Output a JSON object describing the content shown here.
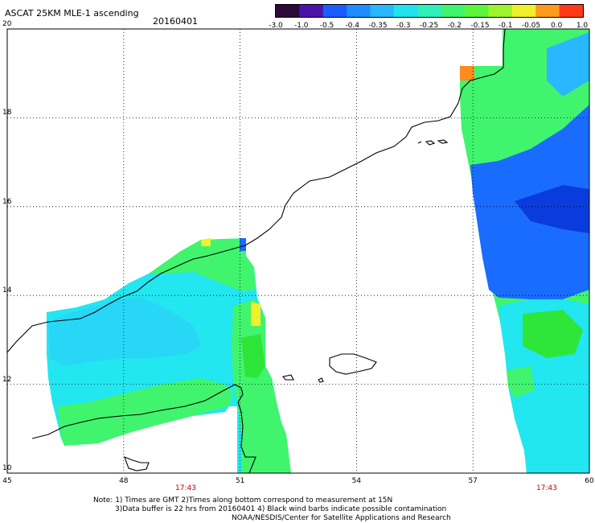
{
  "header": {
    "title": "ASCAT 25KM MLE-1 ascending",
    "date": "20160401"
  },
  "colorbar": {
    "labels": [
      "-3.0",
      "-1.0",
      "-0.5",
      "-0.4",
      "-0.35",
      "-0.3",
      "-0.25",
      "-0.2",
      "-0.15",
      "-0.1",
      "-0.05",
      "0.0",
      "1.0"
    ],
    "colors": [
      "#2b0a3a",
      "#4b14a8",
      "#1a5cff",
      "#1f8cff",
      "#29b7ff",
      "#22e2f0",
      "#2ff0b8",
      "#41f46e",
      "#5cf53a",
      "#9cf52a",
      "#f0f02a",
      "#ff9a1e",
      "#ff3a1a"
    ]
  },
  "map": {
    "lon_labels": [
      "45",
      "48",
      "51",
      "54",
      "57",
      "60"
    ],
    "lat_labels": [
      "20",
      "18",
      "16",
      "14",
      "12",
      "10"
    ],
    "pass_times": [
      {
        "text": "17:43",
        "lon": 49.6
      },
      {
        "text": "17:43",
        "lon": 58.9
      }
    ],
    "swath_colors": {
      "cyan": "#22e6f0",
      "light_green": "#41f46e",
      "green": "#2ee63a",
      "blue": "#1a6cff",
      "deep_blue": "#0a3cdd",
      "yellow": "#f2f02a",
      "orange": "#ff8a1e"
    }
  },
  "notes": {
    "line1": "Note: 1) Times are GMT 2)Times along bottom correspond to measurement at 15N",
    "line2": "3)Data buffer is 22 hrs from 20160401 4) Black wind barbs indicate possible contamination",
    "line3": "NOAA/NESDIS/Center for Satellite Applications and Research"
  }
}
